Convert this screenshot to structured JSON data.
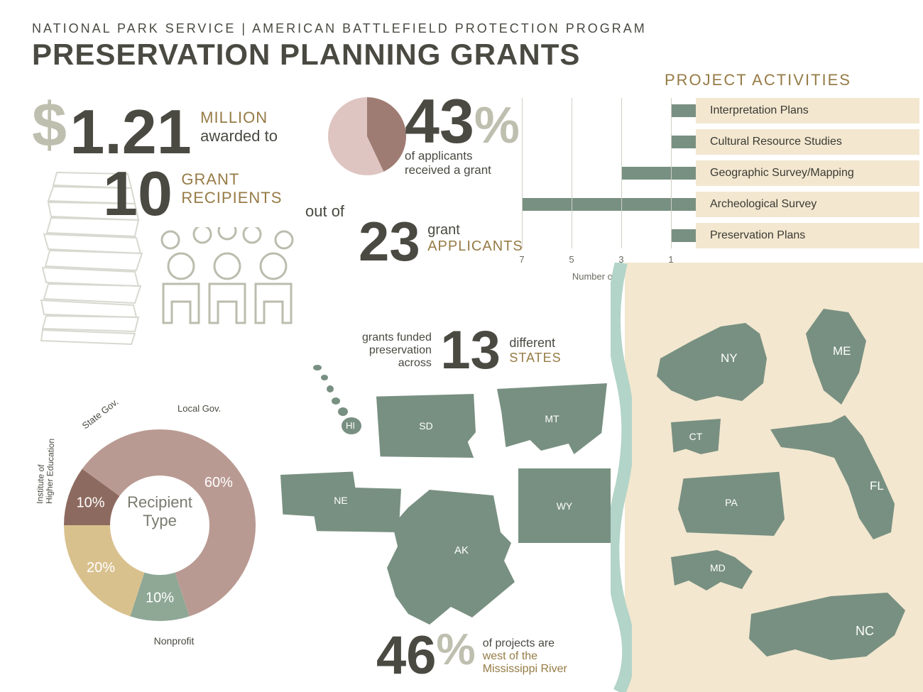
{
  "header": {
    "subtitle": "NATIONAL PARK SERVICE | AMERICAN BATTLEFIELD PROTECTION PROGRAM",
    "title": "PRESERVATION PLANNING GRANTS"
  },
  "award": {
    "dollar": "$",
    "amount": "1.21",
    "million": "MILLION",
    "awarded_to": "awarded to",
    "recipients_n": "10",
    "grant": "GRANT",
    "recipients": "RECIPIENTS"
  },
  "acceptance": {
    "pct": "43",
    "pct_sym": "%",
    "line1": "of applicants",
    "line2": "received a grant",
    "out_of": "out of",
    "applicants_n": "23",
    "grant": "grant",
    "applicants": "APPLICANTS",
    "pie_color_main": "#dfc5c1",
    "pie_color_slice": "#9f7c73",
    "pie_pct": 43
  },
  "barchart": {
    "title": "PROJECT ACTIVITIES",
    "bars": [
      {
        "label": "Interpretation Plans",
        "value": 1
      },
      {
        "label": "Cultural Resource Studies",
        "value": 1
      },
      {
        "label": "Geographic Survey/Mapping",
        "value": 3
      },
      {
        "label": "Archeological Survey",
        "value": 7
      },
      {
        "label": "Preservation Plans",
        "value": 1
      }
    ],
    "xticks": [
      7,
      5,
      3,
      1
    ],
    "xmax": 7,
    "axis_title": "Number of Grants",
    "bar_color": "#789081",
    "grid_color": "#cfcfc6",
    "label_bg": "#f3e7d0"
  },
  "thirteen": {
    "pre1": "grants funded",
    "pre2": "preservation",
    "pre3": "across",
    "n": "13",
    "post1": "different",
    "post2": "STATES"
  },
  "donut": {
    "center1": "Recipient",
    "center2": "Type",
    "segments": [
      {
        "label": "Nonprofit",
        "pct": 60,
        "color": "#b99a92"
      },
      {
        "label": "Institute of Higher Education",
        "pct": 10,
        "color": "#8d6a5f"
      },
      {
        "label": "State Gov.",
        "pct": 20,
        "color": "#d9c18e"
      },
      {
        "label": "Local Gov.",
        "pct": 10,
        "color": "#8fa896"
      }
    ],
    "inner_r": 70,
    "outer_r": 135
  },
  "west": {
    "pct": "46",
    "sym": "%",
    "line1": "of projects are",
    "line2": "west of the",
    "line3": "Mississippi River"
  },
  "states_west": [
    "HI",
    "SD",
    "MT",
    "NE",
    "AK",
    "WY"
  ],
  "states_east": [
    "NY",
    "ME",
    "CT",
    "FL",
    "PA",
    "MD",
    "NC"
  ],
  "colors": {
    "state_fill": "#789081",
    "east_bg": "#f3e7d0",
    "river": "#b3d4c8",
    "text_dark": "#4a4a42",
    "text_gold": "#967b45",
    "text_light": "#bfbfb0"
  }
}
